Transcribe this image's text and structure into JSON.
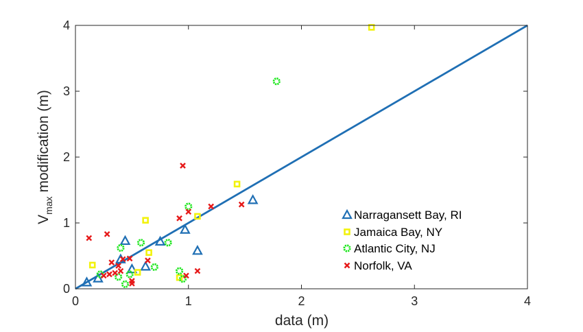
{
  "chart_data": {
    "type": "scatter",
    "xlabel": "data (m)",
    "ylabel_main": "V",
    "ylabel_sub": "max",
    "ylabel_rest": " modification (m)",
    "xlim": [
      0,
      4
    ],
    "ylim": [
      0,
      4
    ],
    "xticks": [
      "0",
      "1",
      "2",
      "3",
      "4"
    ],
    "yticks": [
      "0",
      "1",
      "2",
      "3",
      "4"
    ],
    "grid": false,
    "legend_position": "lower-right",
    "reference_line": {
      "from": [
        0,
        0
      ],
      "to": [
        4,
        4
      ],
      "color": "#1f6fb4"
    },
    "series": [
      {
        "name": "Narragansett Bay, RI",
        "marker": "triangle",
        "color": "#1f6fb4",
        "points": [
          [
            0.1,
            0.1
          ],
          [
            0.2,
            0.16
          ],
          [
            0.4,
            0.45
          ],
          [
            0.44,
            0.73
          ],
          [
            0.5,
            0.3
          ],
          [
            0.62,
            0.34
          ],
          [
            0.75,
            0.72
          ],
          [
            0.97,
            0.9
          ],
          [
            1.08,
            0.58
          ],
          [
            1.57,
            1.35
          ]
        ]
      },
      {
        "name": "Jamaica Bay, NY",
        "marker": "square",
        "color": "#f2f20d",
        "points": [
          [
            0.15,
            0.36
          ],
          [
            0.55,
            0.25
          ],
          [
            0.62,
            1.04
          ],
          [
            0.65,
            0.55
          ],
          [
            0.92,
            0.17
          ],
          [
            1.08,
            1.1
          ],
          [
            1.43,
            1.59
          ],
          [
            2.62,
            3.97
          ]
        ]
      },
      {
        "name": "Atlantic City, NJ",
        "marker": "circle",
        "color": "#19e619",
        "points": [
          [
            0.22,
            0.22
          ],
          [
            0.38,
            0.18
          ],
          [
            0.4,
            0.62
          ],
          [
            0.44,
            0.07
          ],
          [
            0.48,
            0.22
          ],
          [
            0.58,
            0.7
          ],
          [
            0.7,
            0.33
          ],
          [
            0.82,
            0.7
          ],
          [
            0.92,
            0.27
          ],
          [
            0.95,
            0.15
          ],
          [
            1.0,
            1.25
          ],
          [
            1.78,
            3.15
          ]
        ]
      },
      {
        "name": "Norfolk, VA",
        "marker": "x",
        "color": "#e61919",
        "points": [
          [
            0.12,
            0.77
          ],
          [
            0.25,
            0.2
          ],
          [
            0.28,
            0.83
          ],
          [
            0.3,
            0.22
          ],
          [
            0.32,
            0.4
          ],
          [
            0.35,
            0.24
          ],
          [
            0.38,
            0.35
          ],
          [
            0.4,
            0.27
          ],
          [
            0.42,
            0.45
          ],
          [
            0.48,
            0.46
          ],
          [
            0.5,
            0.12
          ],
          [
            0.5,
            0.08
          ],
          [
            0.64,
            0.43
          ],
          [
            0.92,
            1.07
          ],
          [
            0.95,
            1.87
          ],
          [
            0.98,
            0.2
          ],
          [
            1.0,
            1.17
          ],
          [
            1.08,
            0.27
          ],
          [
            1.2,
            1.25
          ],
          [
            1.47,
            1.28
          ]
        ]
      }
    ]
  }
}
